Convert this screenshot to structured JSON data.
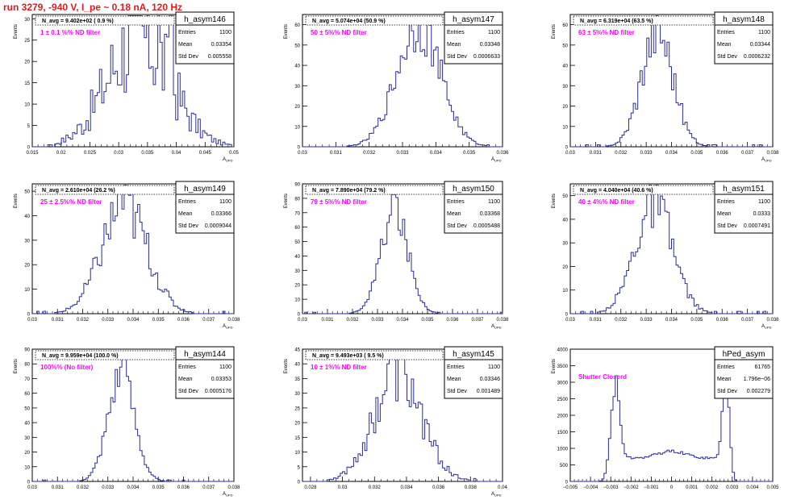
{
  "run_title": "run 3279,  -940 V, I_pe ~ 0.18 nA, 120 Hz",
  "colors": {
    "line": "#2a2aa0",
    "label": "#ff00ff",
    "title": "#e31a1c"
  },
  "chart_data": [
    {
      "type": "histogram",
      "name": "h_asym146",
      "stats": {
        "entries": "1100",
        "mean": "0.03354",
        "std_dev": "0.005558"
      },
      "n_avg": "N_avg = 9.402e+02 ( 0.9 %)",
      "annotation": "1 ± 0.1 %% ND filter",
      "xlabel": "A_UPD",
      "ylabel": "Events",
      "xlim": [
        0.015,
        0.05
      ],
      "ylim": [
        0,
        31
      ],
      "xticks": [
        0.015,
        0.02,
        0.025,
        0.03,
        0.035,
        0.04,
        0.045,
        0.05
      ],
      "xtick_labels": [
        "0.015",
        "0.02",
        "0.025",
        "0.03",
        "0.035",
        "0.04",
        "0.045",
        "0.05"
      ],
      "yticks": [
        0,
        5,
        10,
        15,
        20,
        25,
        30
      ],
      "shape": {
        "kind": "gauss",
        "mean": 0.0335,
        "sigma": 0.0055,
        "peak": 26,
        "noise": 0.55,
        "spikes": [
          0.0325,
          0.037,
          0.039
        ]
      }
    },
    {
      "type": "histogram",
      "name": "h_asym147",
      "stats": {
        "entries": "1100",
        "mean": "0.03348",
        "std_dev": "0.0006633"
      },
      "n_avg": "N_avg = 5.074e+04 (50.9 %)",
      "annotation": "50 ± 5%% ND filter",
      "xlabel": "A_UPD",
      "ylabel": "Events",
      "xlim": [
        0.03,
        0.036
      ],
      "ylim": [
        0,
        65
      ],
      "xticks": [
        0.03,
        0.031,
        0.032,
        0.033,
        0.034,
        0.035,
        0.036
      ],
      "xtick_labels": [
        "0.03",
        "0.031",
        "0.032",
        "0.033",
        "0.034",
        "0.035",
        "0.036"
      ],
      "yticks": [
        0,
        10,
        20,
        30,
        40,
        50,
        60
      ],
      "shape": {
        "kind": "gauss",
        "mean": 0.03348,
        "sigma": 0.00066,
        "peak": 60,
        "noise": 0.22
      }
    },
    {
      "type": "histogram",
      "name": "h_asym148",
      "stats": {
        "entries": "1100",
        "mean": "0.03344",
        "std_dev": "0.0006232"
      },
      "n_avg": "N_avg = 6.319e+04 (63.5 %)",
      "annotation": "63 ± 5%% ND filter",
      "xlabel": "A_UPD",
      "ylabel": "Events",
      "xlim": [
        0.03,
        0.038
      ],
      "ylim": [
        0,
        65
      ],
      "xticks": [
        0.03,
        0.031,
        0.032,
        0.033,
        0.034,
        0.035,
        0.036,
        0.037,
        0.038
      ],
      "xtick_labels": [
        "0.03",
        "0.031",
        "0.032",
        "0.033",
        "0.034",
        "0.035",
        "0.036",
        "0.037",
        "0.038"
      ],
      "yticks": [
        0,
        10,
        20,
        30,
        40,
        50,
        60
      ],
      "shape": {
        "kind": "gauss",
        "mean": 0.03344,
        "sigma": 0.00062,
        "peak": 58,
        "noise": 0.25
      }
    },
    {
      "type": "histogram",
      "name": "h_asym149",
      "stats": {
        "entries": "1100",
        "mean": "0.03366",
        "std_dev": "0.0009044"
      },
      "n_avg": "N_avg = 2.610e+04 (26.2 %)",
      "annotation": "25 ± 2.5%% ND filter",
      "xlabel": "A_UPD",
      "ylabel": "Events",
      "xlim": [
        0.03,
        0.038
      ],
      "ylim": [
        0,
        53
      ],
      "xticks": [
        0.03,
        0.031,
        0.032,
        0.033,
        0.034,
        0.035,
        0.036,
        0.037,
        0.038
      ],
      "xtick_labels": [
        "0.03",
        "0.031",
        "0.032",
        "0.033",
        "0.034",
        "0.035",
        "0.036",
        "0.037",
        "0.038"
      ],
      "yticks": [
        0,
        10,
        20,
        30,
        40,
        50
      ],
      "shape": {
        "kind": "gauss",
        "mean": 0.03366,
        "sigma": 0.0009,
        "peak": 44,
        "noise": 0.3,
        "spikes": [
          0.0335
        ]
      }
    },
    {
      "type": "histogram",
      "name": "h_asym150",
      "stats": {
        "entries": "1100",
        "mean": "0.03368",
        "std_dev": "0.0005488"
      },
      "n_avg": "N_avg = 7.890e+04 (79.2 %)",
      "annotation": "79 ± 5%% ND filter",
      "xlabel": "A_UPD",
      "ylabel": "Events",
      "xlim": [
        0.03,
        0.038
      ],
      "ylim": [
        0,
        90
      ],
      "xticks": [
        0.03,
        0.031,
        0.032,
        0.033,
        0.034,
        0.035,
        0.036,
        0.037,
        0.038
      ],
      "xtick_labels": [
        "0.03",
        "0.031",
        "0.032",
        "0.033",
        "0.034",
        "0.035",
        "0.036",
        "0.037",
        "0.038"
      ],
      "yticks": [
        0,
        10,
        20,
        30,
        40,
        50,
        60,
        70,
        80,
        90
      ],
      "shape": {
        "kind": "gauss",
        "mean": 0.03368,
        "sigma": 0.00055,
        "peak": 70,
        "noise": 0.18,
        "spikes": [
          0.03365
        ]
      }
    },
    {
      "type": "histogram",
      "name": "h_asym151",
      "stats": {
        "entries": "1100",
        "mean": "0.0333",
        "std_dev": "0.0007491"
      },
      "n_avg": "N_avg = 4.040e+04 (40.6 %)",
      "annotation": "40 ± 4%% ND filter",
      "xlabel": "A_UPD",
      "ylabel": "Events",
      "xlim": [
        0.03,
        0.038
      ],
      "ylim": [
        0,
        55
      ],
      "xticks": [
        0.03,
        0.031,
        0.032,
        0.033,
        0.034,
        0.035,
        0.036,
        0.037,
        0.038
      ],
      "xtick_labels": [
        "0.03",
        "0.031",
        "0.032",
        "0.033",
        "0.034",
        "0.035",
        "0.036",
        "0.037",
        "0.038"
      ],
      "yticks": [
        0,
        10,
        20,
        30,
        40,
        50
      ],
      "shape": {
        "kind": "gauss",
        "mean": 0.0333,
        "sigma": 0.00075,
        "peak": 46,
        "noise": 0.25,
        "spikes": [
          0.0334
        ]
      }
    },
    {
      "type": "histogram",
      "name": "h_asym144",
      "stats": {
        "entries": "1100",
        "mean": "0.03353",
        "std_dev": "0.0005176"
      },
      "n_avg": "N_avg = 9.959e+04 (100.0 %)",
      "annotation": "100%% (No filter)",
      "xlabel": "A_UPD",
      "ylabel": "Events",
      "xlim": [
        0.03,
        0.038
      ],
      "ylim": [
        0,
        90
      ],
      "xticks": [
        0.03,
        0.031,
        0.032,
        0.033,
        0.034,
        0.035,
        0.036,
        0.037,
        0.038
      ],
      "xtick_labels": [
        "0.03",
        "0.031",
        "0.032",
        "0.033",
        "0.034",
        "0.035",
        "0.036",
        "0.037",
        "0.038"
      ],
      "yticks": [
        0,
        10,
        20,
        30,
        40,
        50,
        60,
        70,
        80,
        90
      ],
      "shape": {
        "kind": "gauss",
        "mean": 0.03353,
        "sigma": 0.00052,
        "peak": 72,
        "noise": 0.2,
        "spikes": [
          0.03362
        ]
      }
    },
    {
      "type": "histogram",
      "name": "h_asym145",
      "stats": {
        "entries": "1100",
        "mean": "0.03346",
        "std_dev": "0.001489"
      },
      "n_avg": "N_avg = 9.493e+03 ( 9.5 %)",
      "annotation": "10 ± 1%% ND filter",
      "xlabel": "A_UPD",
      "ylabel": "Events",
      "xlim": [
        0.0275,
        0.04
      ],
      "ylim": [
        0,
        45
      ],
      "xticks": [
        0.028,
        0.03,
        0.032,
        0.034,
        0.036,
        0.038,
        0.04
      ],
      "xtick_labels": [
        "0.028",
        "0.03",
        "0.032",
        "0.034",
        "0.036",
        "0.038",
        "0.04"
      ],
      "yticks": [
        0,
        5,
        10,
        15,
        20,
        25,
        30,
        35,
        40,
        45
      ],
      "shape": {
        "kind": "gauss",
        "mean": 0.03346,
        "sigma": 0.0015,
        "peak": 36,
        "noise": 0.3,
        "spikes": [
          0.033
        ]
      }
    },
    {
      "type": "histogram",
      "name": "hPed_asym",
      "stats": {
        "entries": "61765",
        "mean": "1.796e−06",
        "std_dev": "0.002279"
      },
      "n_avg": "",
      "annotation": "Shutter Closerd",
      "xlabel": "",
      "ylabel": "Events",
      "xlim": [
        -0.005,
        0.005
      ],
      "ylim": [
        0,
        4000
      ],
      "xticks": [
        -0.005,
        -0.004,
        -0.003,
        -0.002,
        -0.001,
        0,
        0.001,
        0.002,
        0.003,
        0.004,
        0.005
      ],
      "xtick_labels": [
        "−0.005",
        "−0.004",
        "−0.003",
        "−0.002",
        "−0.001",
        "0",
        "0.001",
        "0.002",
        "0.003",
        "0.004",
        "0.005"
      ],
      "yticks": [
        0,
        500,
        1000,
        1500,
        2000,
        2500,
        3000,
        3500,
        4000
      ],
      "shape": {
        "kind": "ped",
        "left_peak": -0.0028,
        "right_peak": 0.0027,
        "peak": 2600,
        "right_top": 3200,
        "floor": 700,
        "noise": 0.05
      }
    }
  ]
}
